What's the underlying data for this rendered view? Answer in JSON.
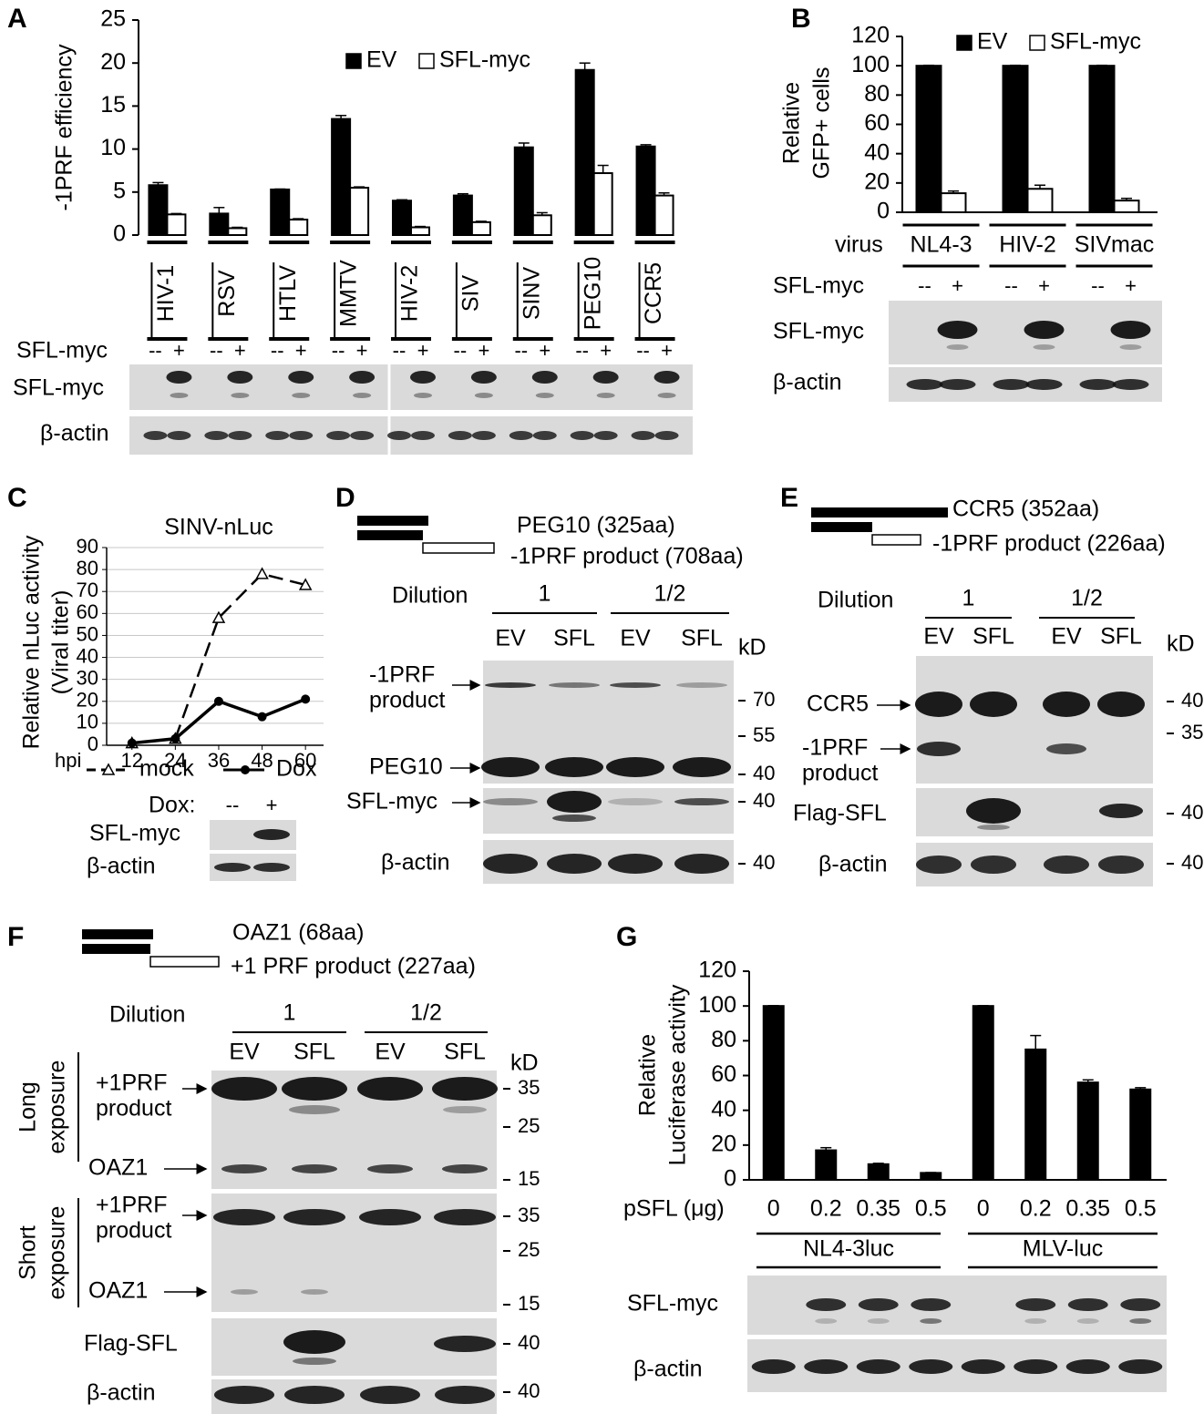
{
  "panels": [
    "A",
    "B",
    "C",
    "D",
    "E",
    "F",
    "G"
  ],
  "chart_data": [
    {
      "type": "bar",
      "ylabel": "-1PRF efficiency",
      "categories": [
        "HIV-1",
        "RSV",
        "HTLV",
        "MMTV",
        "HIV-2",
        "SIV",
        "SINV",
        "PEG10",
        "CCR5"
      ],
      "series": [
        {
          "name": "EV",
          "color": "#000000",
          "values": [
            5.8,
            2.5,
            5.3,
            13.5,
            4.0,
            4.6,
            10.2,
            19.2,
            10.3
          ],
          "errors": [
            0.3,
            0.7,
            0.05,
            0.4,
            0.1,
            0.2,
            0.5,
            0.8,
            0.2
          ]
        },
        {
          "name": "SFL-myc",
          "color": "#ffffff",
          "values": [
            2.4,
            0.8,
            1.8,
            5.5,
            0.9,
            1.5,
            2.3,
            7.2,
            4.6
          ],
          "errors": [
            0.1,
            0.1,
            0.1,
            0.1,
            0.1,
            0.1,
            0.3,
            0.9,
            0.3
          ]
        }
      ],
      "ylim": [
        0,
        25
      ],
      "yticks": [
        0,
        5,
        10,
        15,
        20,
        25
      ]
    },
    {
      "type": "bar",
      "ylabel": [
        "Relative",
        "GFP+ cells"
      ],
      "xlabel": "virus",
      "categories": [
        "NL4-3",
        "HIV-2",
        "SIVmac"
      ],
      "series": [
        {
          "name": "EV",
          "color": "#000000",
          "values": [
            100,
            100,
            100
          ],
          "errors": [
            0.3,
            0.3,
            0.3
          ]
        },
        {
          "name": "SFL-myc",
          "color": "#ffffff",
          "values": [
            13,
            16,
            8
          ],
          "errors": [
            1.5,
            2.5,
            1.5
          ]
        }
      ],
      "ylim": [
        0,
        120
      ],
      "yticks": [
        0,
        20,
        40,
        60,
        80,
        100,
        120
      ]
    },
    {
      "type": "line",
      "title": "SINV-nLuc",
      "ylabel": [
        "Relative nLuc activity",
        "(Viral titer)"
      ],
      "xlabel": "hpi",
      "x": [
        12,
        24,
        36,
        48,
        60
      ],
      "series": [
        {
          "name": "mock",
          "color": "#000000",
          "line_style": "dashed",
          "marker": "triangle",
          "values": [
            1,
            3,
            58,
            78,
            73
          ]
        },
        {
          "name": "Dox",
          "color": "#000000",
          "line_style": "solid",
          "marker": "circle",
          "values": [
            1,
            3,
            20,
            13,
            21
          ]
        }
      ],
      "xlim": [
        5,
        65
      ],
      "xticks": [
        12,
        24,
        36,
        48,
        60
      ],
      "ylim": [
        0,
        90
      ],
      "yticks": [
        0,
        10,
        20,
        30,
        40,
        50,
        60,
        70,
        80,
        90
      ],
      "grid": true
    },
    {
      "type": "bar",
      "ylabel": [
        "Relative",
        "Luciferase activity"
      ],
      "xlabel": "pSFL (μg)",
      "categories": [
        "0",
        "0.2",
        "0.35",
        "0.5",
        "0",
        "0.2",
        "0.35",
        "0.5"
      ],
      "groups": [
        "NL4-3luc",
        "MLV-luc"
      ],
      "color": "#000000",
      "values": [
        100,
        17,
        9,
        4,
        100,
        75,
        56,
        52
      ],
      "errors": [
        0.2,
        1.5,
        0.5,
        0.2,
        0.2,
        8,
        1.5,
        1
      ],
      "ylim": [
        0,
        120
      ],
      "yticks": [
        0,
        20,
        40,
        60,
        80,
        100,
        120
      ]
    }
  ],
  "blots": {
    "A": {
      "lane_header": "SFL-myc",
      "lanes": [
        "--",
        "+",
        "--",
        "+",
        "--",
        "+",
        "--",
        "+",
        "--",
        "+",
        "--",
        "+",
        "--",
        "+",
        "--",
        "+",
        "--",
        "+"
      ],
      "rows": [
        "SFL-myc",
        "β-actin"
      ]
    },
    "B": {
      "lane_header": "SFL-myc",
      "lanes": [
        "--",
        "+",
        "--",
        "+",
        "--",
        "+"
      ],
      "rows": [
        "SFL-myc",
        "β-actin"
      ]
    },
    "C": {
      "lane_header": "Dox:",
      "lanes": [
        "--",
        "+"
      ],
      "rows": [
        "SFL-myc",
        "β-actin"
      ]
    },
    "D": {
      "constructs": [
        "PEG10 (325aa)",
        "-1PRF product (708aa)"
      ],
      "dilution_label": "Dilution",
      "dilutions": [
        "1",
        "1/2"
      ],
      "lanes": [
        "EV",
        "SFL",
        "EV",
        "SFL"
      ],
      "unit": "kD",
      "labels": [
        [
          "-1PRF",
          "product"
        ],
        "PEG10",
        "SFL-myc",
        "β-actin"
      ],
      "markers": [
        "70",
        "55",
        "40",
        "40",
        "40"
      ]
    },
    "E": {
      "constructs": [
        "CCR5 (352aa)",
        "-1PRF product (226aa)"
      ],
      "dilution_label": "Dilution",
      "dilutions": [
        "1",
        "1/2"
      ],
      "lanes": [
        "EV",
        "SFL",
        "EV",
        "SFL"
      ],
      "unit": "kD",
      "labels": [
        "CCR5",
        [
          "-1PRF",
          "product"
        ],
        "Flag-SFL",
        "β-actin"
      ],
      "markers": [
        "40",
        "35",
        "40",
        "40"
      ]
    },
    "F": {
      "constructs": [
        "OAZ1 (68aa)",
        "+1 PRF product (227aa)"
      ],
      "dilution_label": "Dilution",
      "dilutions": [
        "1",
        "1/2"
      ],
      "lanes": [
        "EV",
        "SFL",
        "EV",
        "SFL"
      ],
      "unit": "kD",
      "exposures": [
        [
          "Long",
          "exposure"
        ],
        [
          "Short",
          "exposure"
        ]
      ],
      "labels": [
        [
          "+1PRF",
          "product"
        ],
        "OAZ1",
        [
          "+1PRF",
          "product"
        ],
        "OAZ1",
        "Flag-SFL",
        "β-actin"
      ],
      "markers": [
        "35",
        "25",
        "15",
        "35",
        "25",
        "15",
        "40",
        "40"
      ]
    },
    "G": {
      "rows": [
        "SFL-myc",
        "β-actin"
      ]
    }
  }
}
